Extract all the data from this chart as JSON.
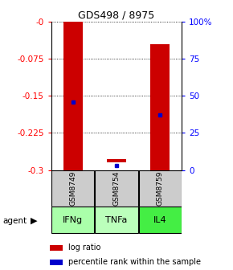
{
  "title": "GDS498 / 8975",
  "samples": [
    "GSM8749",
    "GSM8754",
    "GSM8759"
  ],
  "agents": [
    "IFNg",
    "TNFa",
    "IL4"
  ],
  "bar_tops": [
    0.0,
    -0.277,
    -0.045
  ],
  "bar_bottoms": [
    -0.3,
    -0.285,
    -0.3
  ],
  "pct_ranks": [
    46,
    3,
    37
  ],
  "pct_has_dot": [
    true,
    true,
    true
  ],
  "ylim_left": [
    -0.3,
    0.0
  ],
  "yticks_left": [
    0.0,
    -0.075,
    -0.15,
    -0.225,
    -0.3
  ],
  "ytick_labels_left": [
    "-0",
    "-0.075",
    "-0.15",
    "-0.225",
    "-0.3"
  ],
  "yticks_right": [
    100,
    75,
    50,
    25,
    0
  ],
  "ytick_labels_right": [
    "100%",
    "75",
    "50",
    "25",
    "0"
  ],
  "bar_color": "#cc0000",
  "dot_color": "#0000cc",
  "sample_box_color": "#cccccc",
  "agent_colors": [
    "#aaffaa",
    "#bbffbb",
    "#44ee44"
  ],
  "legend_items": [
    "log ratio",
    "percentile rank within the sample"
  ],
  "legend_colors": [
    "#cc0000",
    "#0000cc"
  ]
}
